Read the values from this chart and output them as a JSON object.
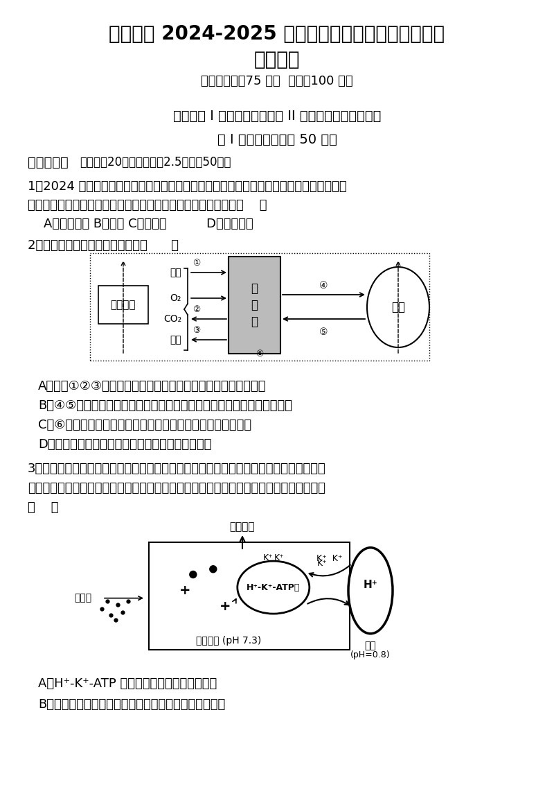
{
  "title1": "厦泉五校 2024-2025 学年高二年级第一学期期中联考",
  "title2": "生物试题",
  "subtitle": "（考试时间：75 分钟  满分：100 分）",
  "section_header": "试卷分第 I 卷（选择题）和第 II 卷（非选择题）两部分",
  "part1_header": "第 I 卷（选择题，共 50 分）",
  "part1_section": "一、单选题",
  "part1_section_note": "（本题共20小题，每小题2.5分，共50分）",
  "q1_text1": "1．2024 年巴黎奥运会，我国游泳队运动员取得了骄人的成绩。在运动员的训练和比赛期间",
  "q1_text2": "需要监测一些相关指标，下列指标中不属于内环境组成成分的是（    ）",
  "q1_options": "    A．肾上腺素 B．血糖 C．呼吸酶          D．甘油三酯",
  "q2_text": "2．下列关于图的说法不正确的是（      ）",
  "q2_optionA": "A．图示①②③过程需要消化、呼吸、泌尿等系统的参与才能完成",
  "q2_optionB": "B．④⑤可分别表示细胞所需要的氧气、养料和代谢产生的二氧化碳等废物",
  "q2_optionC": "C．⑥表示有少数细胞可以与外界环境进行部分物质的直接交换",
  "q2_optionD": "D．图示的内环境通常是由血液、组织液与淋巴组成",
  "q3_text1": "3．将某种贴剂贴在患儿肚脐处可有效缓解小儿腹泻腹痛。如图所示，贴剂中的丁香酚经扩",
  "q3_text2": "散最终进入胃壁细胞，刺激胃蛋白酶和胃酸分泌，进而促进食物的消化。下列叙述正确的是",
  "q3_bracket": "（    ）",
  "q3_optionA": "A．H⁺-K⁺-ATP 酶是介导易化扩散的载体蛋白",
  "q3_optionB": "B．胃蛋白酶在胃壁细胞内合成后可通过胞吐进入内环境",
  "bg_color": "#ffffff",
  "text_color": "#000000",
  "font_size_title1": 20,
  "font_size_title2": 20,
  "font_size_subtitle": 13,
  "font_size_section": 14,
  "font_size_part": 14,
  "font_size_body": 13
}
